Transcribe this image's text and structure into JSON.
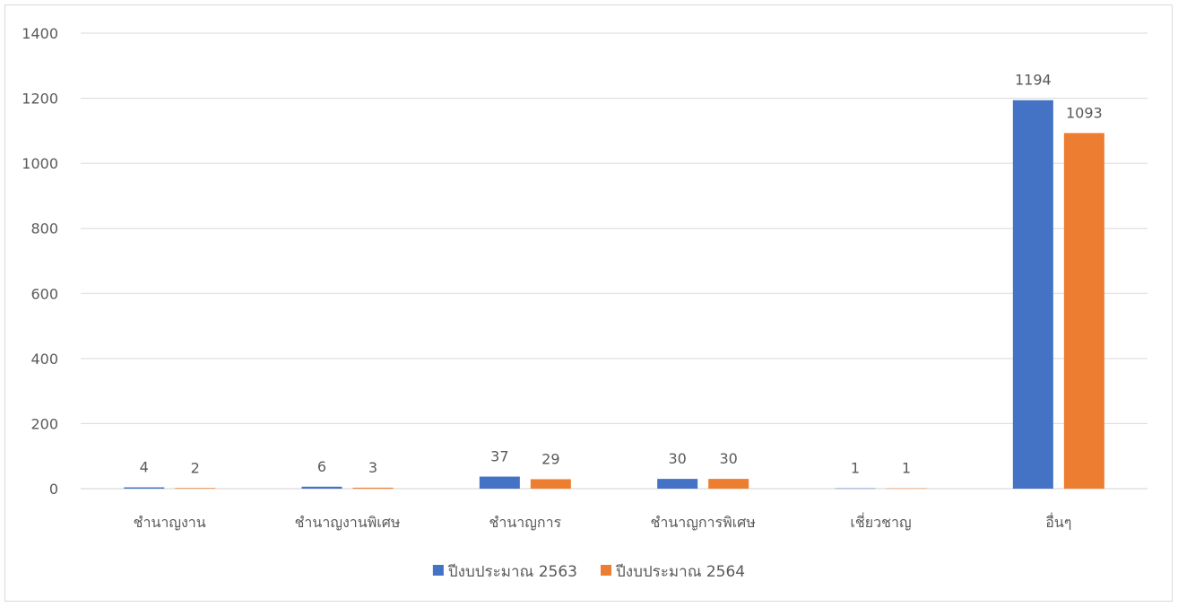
{
  "chart_data": {
    "type": "bar",
    "categories": [
      "ชำนาญงาน",
      "ชำนาญงานพิเศษ",
      "ชำนาญการ",
      "ชำนาญการพิเศษ",
      "เชี่ยวชาญ",
      "อื่นๆ"
    ],
    "series": [
      {
        "name": "ปีงบประมาณ 2563",
        "color": "#4472c4",
        "values": [
          4,
          6,
          37,
          30,
          1,
          1194
        ]
      },
      {
        "name": "ปีงบประมาณ 2564",
        "color": "#ed7d31",
        "values": [
          2,
          3,
          29,
          30,
          1,
          1093
        ]
      }
    ],
    "ylim": [
      0,
      1400
    ],
    "yticks": [
      0,
      200,
      400,
      600,
      800,
      1000,
      1200,
      1400
    ],
    "grid": true,
    "legend_position": "bottom",
    "data_labels": true
  }
}
